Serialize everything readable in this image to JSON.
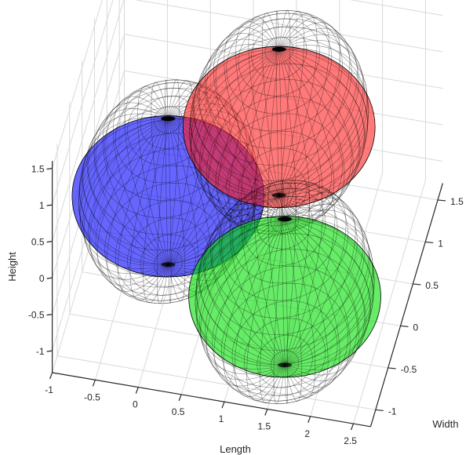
{
  "chart_data": {
    "type": "surface-3d",
    "title": "",
    "xlabel": "Length",
    "ylabel": "Width",
    "zlabel": "Height",
    "xlim": [
      -1,
      2.7
    ],
    "ylim": [
      -1.2,
      1.7
    ],
    "zlim": [
      -1.3,
      1.6
    ],
    "xticks": [
      "-1",
      "-0.5",
      "0",
      "0.5",
      "1",
      "1.5",
      "2",
      "2.5"
    ],
    "yticks": [
      "-1",
      "-0.5",
      "0",
      "0.5",
      "1",
      "1.5"
    ],
    "zticks": [
      "-1",
      "-0.5",
      "0",
      "0.5",
      "1",
      "1.5"
    ],
    "xtick_values": [
      -1,
      -0.5,
      0,
      0.5,
      1,
      1.5,
      2,
      2.5
    ],
    "ytick_values": [
      -1,
      -0.5,
      0,
      0.5,
      1,
      1.5
    ],
    "ztick_values": [
      -1,
      -0.5,
      0,
      0.5,
      1,
      1.5
    ],
    "grid": true,
    "series": [
      {
        "center": [
          0,
          0,
          0
        ],
        "radius": 1,
        "color": "#0000ff",
        "opacity": 0.6
      },
      {
        "center": [
          1,
          1,
          0
        ],
        "radius": 1,
        "color": "#ff2020",
        "opacity": 0.6
      },
      {
        "center": [
          1.5,
          -0.5,
          -0.5
        ],
        "radius": 1,
        "color": "#00e000",
        "opacity": 0.6
      }
    ]
  }
}
